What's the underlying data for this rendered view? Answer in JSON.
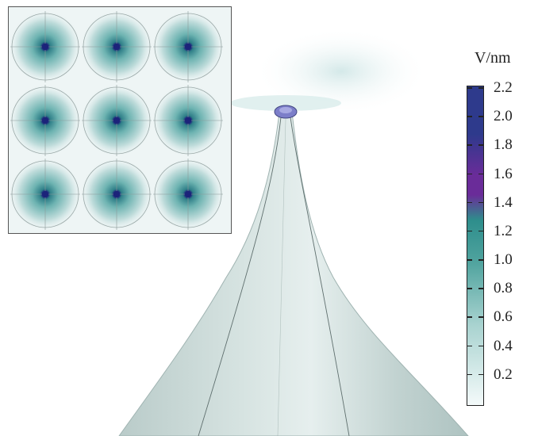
{
  "colorbar": {
    "unit": "V/nm",
    "min": 0,
    "max": 2.2,
    "ticks": [
      "2.2",
      "2.0",
      "1.8",
      "1.6",
      "1.4",
      "1.2",
      "1.0",
      "0.8",
      "0.6",
      "0.4",
      "0.2"
    ],
    "tick_values": [
      2.2,
      2.0,
      1.8,
      1.6,
      1.4,
      1.2,
      1.0,
      0.8,
      0.6,
      0.4,
      0.2
    ],
    "colors": {
      "low": "#f4fafa",
      "mid_low": "#a9d3d0",
      "mid": "#4fa39e",
      "teal": "#2e8e8c",
      "violet": "#6a2c99",
      "high": "#2e3a8c"
    }
  },
  "inset": {
    "grid_rows": 3,
    "grid_cols": 3,
    "dot_color": "#1c237a",
    "glow_color": "#52a9a8",
    "background": "#eef5f5"
  },
  "tip": {
    "body_color": "#c7d6d4",
    "apex_color": "#7c7ec9"
  }
}
